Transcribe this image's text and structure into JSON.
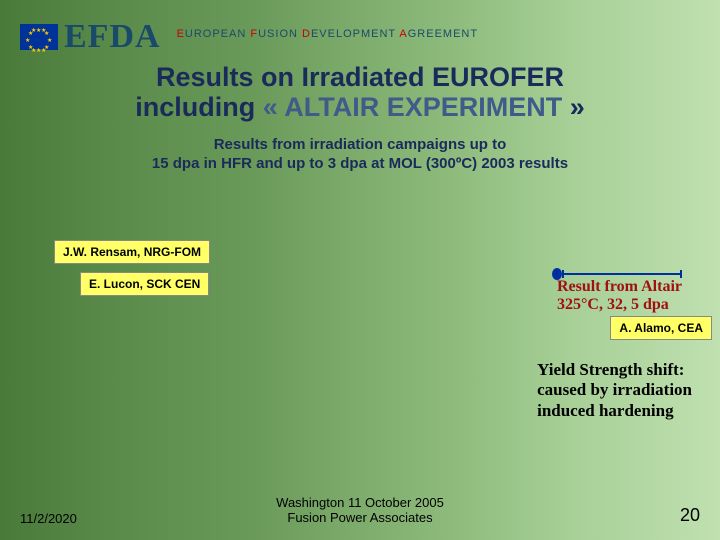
{
  "header": {
    "logo_text": "EFDA",
    "tag_e": "E",
    "tag_uropean": "UROPEAN   ",
    "tag_f": "F",
    "tag_usion": "USION   ",
    "tag_d": "D",
    "tag_evelopment": "EVELOPMENT   ",
    "tag_a": "A",
    "tag_greement": "GREEMENT"
  },
  "title": {
    "line1": "Results on Irradiated EUROFER",
    "line2a": "including",
    "line2b": " « ALTAIR EXPERIMENT ",
    "line2c": "»"
  },
  "subtitle": {
    "line1": "Results from irradiation campaigns up to",
    "line2": "15 dpa in HFR and up to 3 dpa at MOL (300ºC) 2003 results"
  },
  "authors": {
    "a1": "J.W. Rensam, NRG-FOM",
    "a2": "E. Lucon, SCK CEN",
    "a3": "A. Alamo, CEA"
  },
  "altair": {
    "line1": "Result from Altair",
    "line2": "325°C, 32, 5 dpa"
  },
  "yield": {
    "line1": "Yield Strength shift:",
    "line2": "caused by irradiation",
    "line3": "induced hardening"
  },
  "footer": {
    "date": "11/2/2020",
    "venue1": "Washington 11 October 2005",
    "venue2": "Fusion Power Associates",
    "page": "20"
  },
  "colors": {
    "title": "#1a2a5a",
    "accent_red": "#a01010",
    "yellow_box": "#ffff66",
    "legend_blue": "#0030a0"
  }
}
